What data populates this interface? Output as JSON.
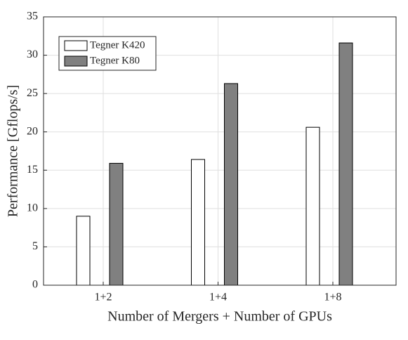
{
  "chart_data": {
    "type": "bar",
    "xlabel": "Number of Mergers + Number of GPUs",
    "ylabel": "Performance [Gflops/s]",
    "categories": [
      "1+2",
      "1+4",
      "1+8"
    ],
    "series": [
      {
        "name": "Tegner K420",
        "color": "#ffffff",
        "values": [
          9.0,
          16.4,
          20.6
        ]
      },
      {
        "name": "Tegner K80",
        "color": "#808080",
        "values": [
          15.9,
          26.3,
          31.6
        ]
      }
    ],
    "ylim": [
      0,
      35
    ],
    "yticks": [
      0,
      5,
      10,
      15,
      20,
      25,
      30,
      35
    ],
    "grid": true,
    "legend": "upper left"
  }
}
